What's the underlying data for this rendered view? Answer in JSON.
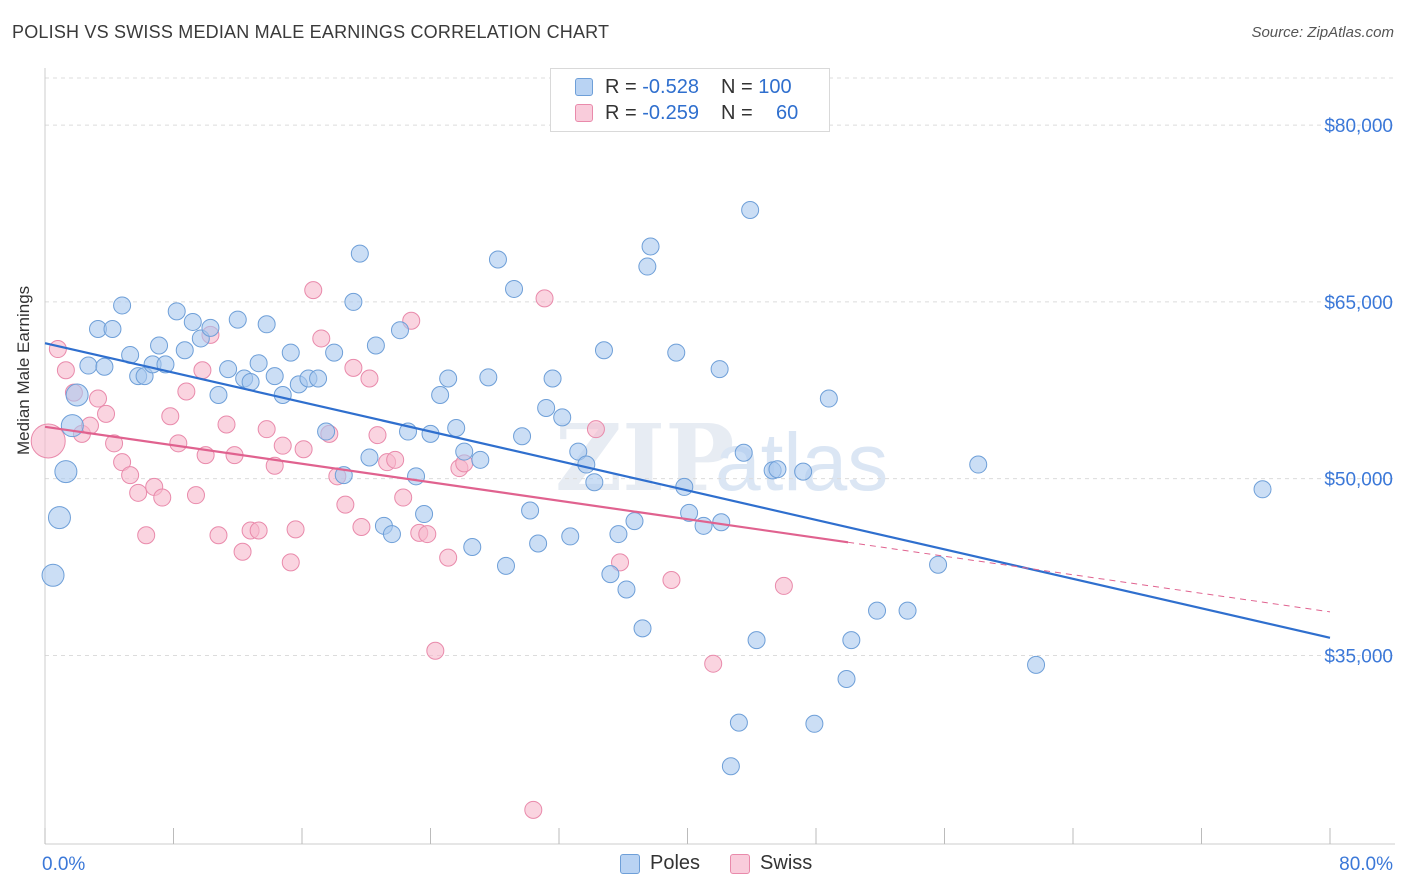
{
  "title": "POLISH VS SWISS MEDIAN MALE EARNINGS CORRELATION CHART",
  "source": "Source: ZipAtlas.com",
  "watermark": {
    "part1": "ZIP",
    "part2": "atlas"
  },
  "legend": {
    "rows": [
      {
        "r_label": "R = ",
        "r_value": "-0.528",
        "n_label": "N = ",
        "n_value": "100"
      },
      {
        "r_label": "R = ",
        "r_value": "-0.259",
        "n_label": "N = ",
        "n_value": "60"
      }
    ],
    "bottom": [
      "Poles",
      "Swiss"
    ]
  },
  "colors": {
    "poles_fill": "#a9c8ef",
    "poles_stroke": "#6e9fd8",
    "poles_line": "#2f6fce",
    "swiss_fill": "#f6b7cb",
    "swiss_stroke": "#e98aab",
    "swiss_line": "#e0628f",
    "tick_label": "#3b78d8"
  },
  "chart_data": {
    "type": "scatter",
    "title": "POLISH VS SWISS MEDIAN MALE EARNINGS CORRELATION CHART",
    "xlabel": "",
    "ylabel": "Median Male Earnings",
    "xlim": [
      0,
      80
    ],
    "ylim": [
      19000,
      84000
    ],
    "x_tick_labels": [
      "0.0%",
      "80.0%"
    ],
    "y_ticks": [
      35000,
      50000,
      65000,
      80000
    ],
    "y_tick_labels": [
      "$35,000",
      "$50,000",
      "$65,000",
      "$80,000"
    ],
    "grid": true,
    "legend_position": "top-center",
    "series": [
      {
        "name": "Poles",
        "r": -0.528,
        "n": 100,
        "trend": {
          "x": [
            0,
            80
          ],
          "y": [
            61500,
            36500
          ]
        },
        "points": [
          [
            0.5,
            41800
          ],
          [
            0.9,
            46700
          ],
          [
            1.3,
            50600
          ],
          [
            1.7,
            54500
          ],
          [
            2.0,
            57100
          ],
          [
            2.7,
            59600
          ],
          [
            3.3,
            62700
          ],
          [
            3.7,
            59500
          ],
          [
            4.2,
            62700
          ],
          [
            4.8,
            64700
          ],
          [
            5.3,
            60500
          ],
          [
            5.8,
            58700
          ],
          [
            6.2,
            58700
          ],
          [
            6.7,
            59700
          ],
          [
            7.1,
            61300
          ],
          [
            7.5,
            59700
          ],
          [
            8.2,
            64200
          ],
          [
            8.7,
            60900
          ],
          [
            9.2,
            63300
          ],
          [
            9.7,
            61900
          ],
          [
            10.3,
            62800
          ],
          [
            10.8,
            57100
          ],
          [
            11.4,
            59300
          ],
          [
            12.0,
            63500
          ],
          [
            12.4,
            58500
          ],
          [
            12.8,
            58200
          ],
          [
            13.3,
            59800
          ],
          [
            13.8,
            63100
          ],
          [
            14.3,
            58700
          ],
          [
            14.8,
            57100
          ],
          [
            15.3,
            60700
          ],
          [
            15.8,
            58000
          ],
          [
            16.4,
            58500
          ],
          [
            17.0,
            58500
          ],
          [
            17.5,
            54000
          ],
          [
            18.0,
            60700
          ],
          [
            18.6,
            50300
          ],
          [
            19.2,
            65000
          ],
          [
            19.6,
            69100
          ],
          [
            20.2,
            51800
          ],
          [
            20.6,
            61300
          ],
          [
            21.1,
            46000
          ],
          [
            21.6,
            45300
          ],
          [
            22.1,
            62600
          ],
          [
            22.6,
            54000
          ],
          [
            23.1,
            50200
          ],
          [
            23.6,
            47000
          ],
          [
            24.0,
            53800
          ],
          [
            24.6,
            57100
          ],
          [
            25.1,
            58500
          ],
          [
            25.6,
            54300
          ],
          [
            26.1,
            52300
          ],
          [
            26.6,
            44200
          ],
          [
            27.1,
            51600
          ],
          [
            27.6,
            58600
          ],
          [
            28.2,
            68600
          ],
          [
            28.7,
            42600
          ],
          [
            29.2,
            66100
          ],
          [
            29.7,
            53600
          ],
          [
            30.2,
            47300
          ],
          [
            30.7,
            44500
          ],
          [
            31.2,
            56000
          ],
          [
            31.6,
            58500
          ],
          [
            32.2,
            55200
          ],
          [
            32.7,
            45100
          ],
          [
            33.2,
            52300
          ],
          [
            33.7,
            51200
          ],
          [
            34.2,
            49700
          ],
          [
            34.8,
            60900
          ],
          [
            35.2,
            41900
          ],
          [
            35.7,
            45300
          ],
          [
            36.2,
            40600
          ],
          [
            36.7,
            46400
          ],
          [
            37.2,
            37300
          ],
          [
            37.5,
            68000
          ],
          [
            37.7,
            69700
          ],
          [
            39.3,
            60700
          ],
          [
            39.8,
            49300
          ],
          [
            40.1,
            47100
          ],
          [
            41.0,
            46000
          ],
          [
            42.0,
            59300
          ],
          [
            42.1,
            46300
          ],
          [
            42.7,
            25600
          ],
          [
            43.2,
            29300
          ],
          [
            43.5,
            52200
          ],
          [
            43.9,
            72800
          ],
          [
            44.3,
            36300
          ],
          [
            45.3,
            50700
          ],
          [
            45.6,
            50800
          ],
          [
            47.2,
            50600
          ],
          [
            47.9,
            29200
          ],
          [
            48.8,
            56800
          ],
          [
            49.9,
            33000
          ],
          [
            50.2,
            36300
          ],
          [
            51.8,
            38800
          ],
          [
            53.7,
            38800
          ],
          [
            55.6,
            42700
          ],
          [
            58.1,
            51200
          ],
          [
            61.7,
            34200
          ],
          [
            75.8,
            49100
          ]
        ]
      },
      {
        "name": "Swiss",
        "r": -0.259,
        "n": 60,
        "trend": {
          "x": [
            0,
            50
          ],
          "y": [
            54400,
            44600
          ]
        },
        "trend_dashed": {
          "x": [
            50,
            80
          ],
          "y": [
            44600,
            38700
          ]
        },
        "points": [
          [
            0.2,
            53200
          ],
          [
            0.8,
            61000
          ],
          [
            1.3,
            59200
          ],
          [
            1.8,
            57300
          ],
          [
            2.3,
            53800
          ],
          [
            2.8,
            54500
          ],
          [
            3.3,
            56800
          ],
          [
            3.8,
            55500
          ],
          [
            4.3,
            53000
          ],
          [
            4.8,
            51400
          ],
          [
            5.3,
            50300
          ],
          [
            5.8,
            48800
          ],
          [
            6.3,
            45200
          ],
          [
            6.8,
            49300
          ],
          [
            7.3,
            48400
          ],
          [
            7.8,
            55300
          ],
          [
            8.3,
            53000
          ],
          [
            8.8,
            57400
          ],
          [
            9.4,
            48600
          ],
          [
            9.8,
            59200
          ],
          [
            10.3,
            62200
          ],
          [
            10.8,
            45200
          ],
          [
            11.3,
            54600
          ],
          [
            11.8,
            52000
          ],
          [
            12.3,
            43800
          ],
          [
            12.8,
            45600
          ],
          [
            13.3,
            45600
          ],
          [
            13.8,
            54200
          ],
          [
            14.3,
            51100
          ],
          [
            14.8,
            52800
          ],
          [
            15.3,
            42900
          ],
          [
            15.6,
            45700
          ],
          [
            16.1,
            52500
          ],
          [
            16.7,
            66000
          ],
          [
            17.2,
            61900
          ],
          [
            17.7,
            53800
          ],
          [
            18.2,
            50200
          ],
          [
            18.7,
            47800
          ],
          [
            19.2,
            59400
          ],
          [
            19.7,
            45900
          ],
          [
            20.2,
            58500
          ],
          [
            20.7,
            53700
          ],
          [
            21.3,
            51400
          ],
          [
            21.8,
            51600
          ],
          [
            22.3,
            48400
          ],
          [
            22.8,
            63400
          ],
          [
            23.3,
            45400
          ],
          [
            23.8,
            45300
          ],
          [
            24.3,
            35400
          ],
          [
            25.1,
            43300
          ],
          [
            25.8,
            50900
          ],
          [
            26.1,
            51300
          ],
          [
            30.4,
            21900
          ],
          [
            31.1,
            65300
          ],
          [
            34.3,
            54200
          ],
          [
            35.8,
            42900
          ],
          [
            39.0,
            41400
          ],
          [
            41.6,
            34300
          ],
          [
            46.0,
            40900
          ],
          [
            10.0,
            52000
          ]
        ]
      }
    ]
  }
}
